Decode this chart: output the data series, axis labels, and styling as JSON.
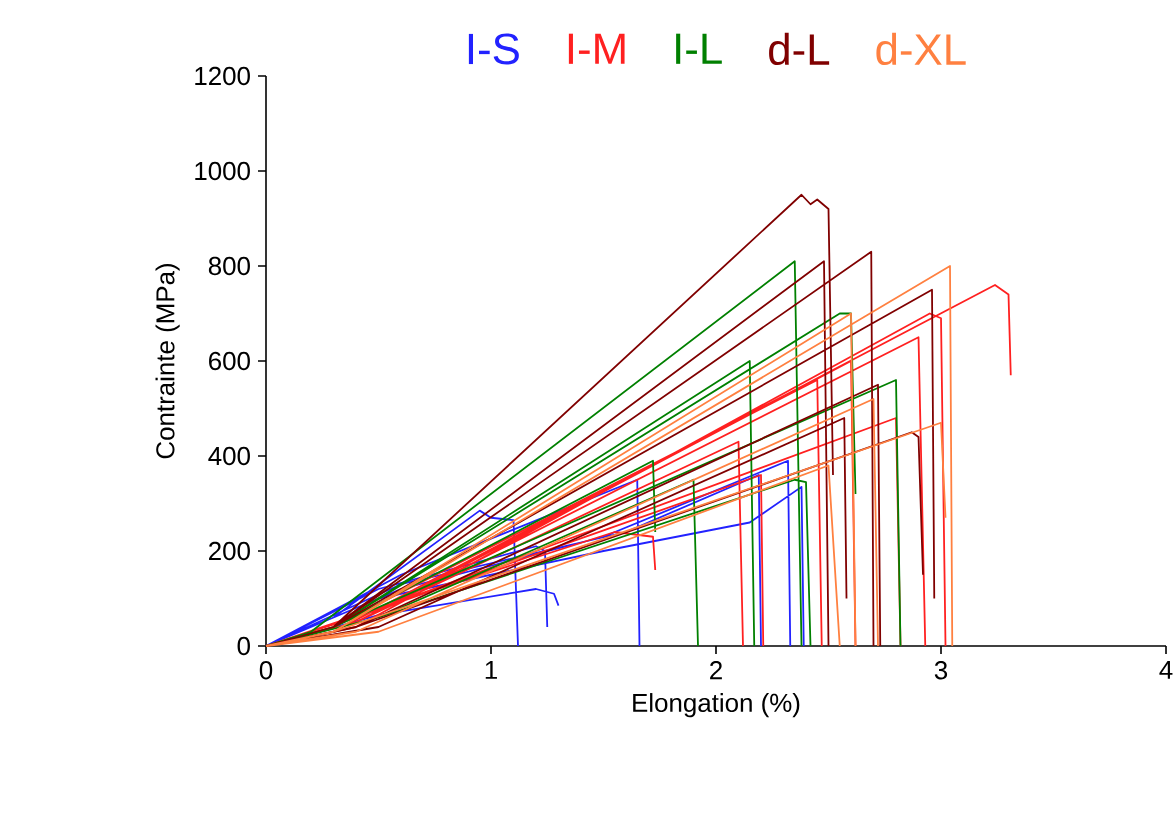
{
  "chart_data": {
    "type": "line",
    "xlabel": "Elongation (%)",
    "ylabel": "Contrainte (MPa)",
    "xlim": [
      0,
      4
    ],
    "xticks": [
      0,
      1,
      2,
      3,
      4
    ],
    "ylim": [
      0,
      1200
    ],
    "yticks": [
      0,
      200,
      400,
      600,
      800,
      1000,
      1200
    ],
    "grid": false,
    "legend": "top",
    "marker": "none",
    "line_style": "solid",
    "series": [
      {
        "name": "I-S",
        "color": "#2222ff",
        "x": [
          0,
          0.3,
          0.95,
          1.0,
          1.1,
          1.12,
          null,
          0,
          0.5,
          1.2,
          1.28,
          1.3,
          null,
          0,
          0.5,
          1.2,
          1.24,
          1.25,
          null,
          0,
          0.6,
          1.65,
          1.66,
          null,
          0,
          0.6,
          1.6,
          2.19,
          2.2,
          null,
          0,
          0.6,
          1.5,
          2.32,
          2.33,
          null,
          0,
          0.5,
          1.5,
          2.15,
          2.38,
          2.39
        ],
        "values": [
          0,
          60,
          285,
          270,
          265,
          0,
          null,
          0,
          65,
          120,
          110,
          85,
          null,
          0,
          120,
          210,
          200,
          40,
          null,
          0,
          150,
          350,
          0,
          null,
          0,
          130,
          240,
          360,
          0,
          null,
          0,
          120,
          230,
          390,
          0,
          null,
          0,
          100,
          200,
          260,
          335,
          0
        ]
      },
      {
        "name": "I-M",
        "color": "#ff2020",
        "x": [
          0,
          0.3,
          3.24,
          3.3,
          3.31,
          null,
          0,
          0.4,
          2.95,
          3.0,
          3.02,
          null,
          0,
          0.4,
          2.9,
          2.93,
          null,
          0,
          0.4,
          2.6,
          2.62,
          null,
          0,
          0.3,
          2.45,
          2.47,
          null,
          0,
          0.4,
          2.1,
          2.12,
          null,
          0,
          0.5,
          1.55,
          1.72,
          1.73,
          null,
          0,
          0.4,
          2.8,
          2.82,
          null,
          0,
          0.4,
          2.2,
          2.21
        ],
        "values": [
          0,
          30,
          760,
          740,
          570,
          null,
          0,
          40,
          700,
          690,
          0,
          null,
          0,
          50,
          650,
          0,
          null,
          0,
          50,
          600,
          0,
          null,
          0,
          40,
          560,
          0,
          null,
          0,
          50,
          430,
          0,
          null,
          0,
          80,
          240,
          230,
          160,
          null,
          0,
          60,
          480,
          0,
          null,
          0,
          60,
          360,
          0
        ]
      },
      {
        "name": "I-L",
        "color": "#008000",
        "x": [
          0,
          0.2,
          2.35,
          2.38,
          null,
          0,
          0.3,
          2.55,
          2.6,
          2.62,
          null,
          0,
          0.3,
          2.15,
          2.17,
          null,
          0,
          0.3,
          2.8,
          2.82,
          null,
          0,
          0.5,
          1.9,
          1.92,
          null,
          0,
          0.5,
          2.35,
          2.4,
          2.42,
          null,
          0,
          0.3,
          1.72,
          1.73
        ],
        "values": [
          0,
          30,
          810,
          0,
          null,
          0,
          40,
          700,
          700,
          320,
          null,
          0,
          40,
          600,
          0,
          null,
          0,
          40,
          560,
          0,
          null,
          0,
          60,
          350,
          0,
          null,
          0,
          60,
          350,
          345,
          0,
          null,
          0,
          40,
          390,
          240
        ]
      },
      {
        "name": "d-L",
        "color": "#800000",
        "x": [
          0,
          0.3,
          2.38,
          2.42,
          2.45,
          2.5,
          2.52,
          null,
          0,
          0.3,
          2.69,
          2.7,
          null,
          0,
          0.3,
          2.48,
          2.5,
          null,
          0,
          0.3,
          2.96,
          2.97,
          null,
          0,
          0.4,
          2.72,
          2.73,
          null,
          0,
          0.4,
          2.87,
          2.9,
          2.92,
          null,
          0,
          0.5,
          2.57,
          2.58
        ],
        "values": [
          0,
          40,
          950,
          930,
          940,
          920,
          360,
          null,
          0,
          40,
          830,
          0,
          null,
          0,
          40,
          810,
          0,
          null,
          0,
          40,
          750,
          100,
          null,
          0,
          40,
          550,
          0,
          null,
          0,
          40,
          450,
          440,
          150,
          null,
          0,
          40,
          480,
          100
        ]
      },
      {
        "name": "d-XL",
        "color": "#ff8040",
        "x": [
          0,
          0.3,
          3.04,
          3.05,
          null,
          0,
          0.3,
          2.6,
          2.62,
          null,
          0,
          0.3,
          3.0,
          3.02,
          null,
          0,
          0.4,
          2.7,
          2.72,
          null,
          0,
          0.5,
          2.5,
          2.55
        ],
        "values": [
          0,
          30,
          800,
          0,
          null,
          0,
          30,
          700,
          0,
          null,
          0,
          30,
          470,
          270,
          null,
          0,
          30,
          520,
          0,
          null,
          0,
          30,
          380,
          0
        ]
      }
    ]
  }
}
